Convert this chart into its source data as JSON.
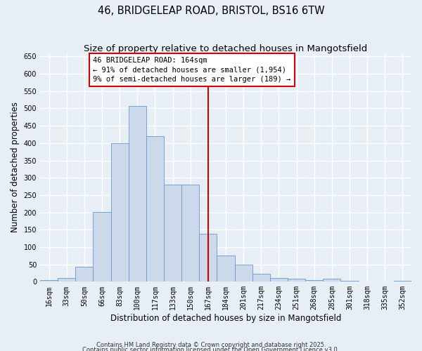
{
  "title_line1": "46, BRIDGELEAP ROAD, BRISTOL, BS16 6TW",
  "title_line2": "Size of property relative to detached houses in Mangotsfield",
  "xlabel": "Distribution of detached houses by size in Mangotsfield",
  "ylabel": "Number of detached properties",
  "bar_labels": [
    "16sqm",
    "33sqm",
    "50sqm",
    "66sqm",
    "83sqm",
    "100sqm",
    "117sqm",
    "133sqm",
    "150sqm",
    "167sqm",
    "184sqm",
    "201sqm",
    "217sqm",
    "234sqm",
    "251sqm",
    "268sqm",
    "285sqm",
    "301sqm",
    "318sqm",
    "335sqm",
    "352sqm"
  ],
  "bar_heights": [
    5,
    10,
    44,
    202,
    399,
    507,
    420,
    280,
    280,
    138,
    75,
    50,
    23,
    11,
    8,
    5,
    8,
    3,
    0,
    0,
    3
  ],
  "bar_color": "#ccd9ea",
  "bar_edge_color": "#6699cc",
  "ylim": [
    0,
    660
  ],
  "yticks": [
    0,
    50,
    100,
    150,
    200,
    250,
    300,
    350,
    400,
    450,
    500,
    550,
    600,
    650
  ],
  "vline_index": 9,
  "vline_color": "#cc0000",
  "annotation_line1": "46 BRIDGELEAP ROAD: 164sqm",
  "annotation_line2": "← 91% of detached houses are smaller (1,954)",
  "annotation_line3": "9% of semi-detached houses are larger (189) →",
  "annotation_box_color": "#cc0000",
  "annotation_bg": "#ffffff",
  "footer_line1": "Contains HM Land Registry data © Crown copyright and database right 2025.",
  "footer_line2": "Contains public sector information licensed under the Open Government Licence v3.0.",
  "bg_color": "#e8eef5",
  "plot_bg_color": "#e8eef5",
  "grid_color": "#ffffff",
  "title_fontsize": 10.5,
  "subtitle_fontsize": 9.5,
  "annotation_fontsize": 7.5,
  "ylabel_fontsize": 8.5,
  "xlabel_fontsize": 8.5,
  "tick_fontsize": 7,
  "footer_fontsize": 6
}
